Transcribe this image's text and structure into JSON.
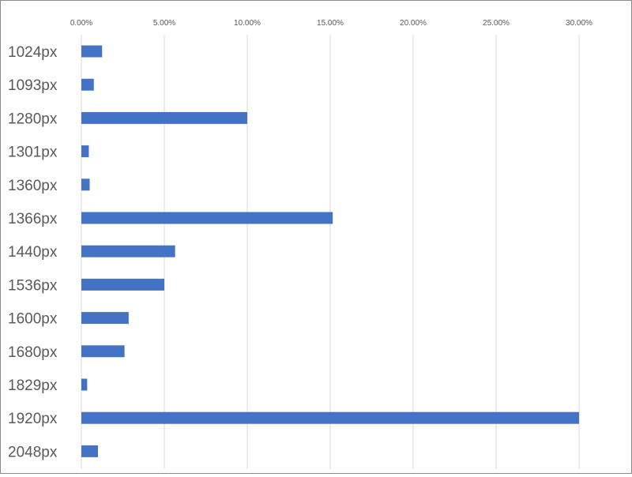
{
  "chart_data": {
    "type": "bar",
    "orientation": "horizontal",
    "categories": [
      "1024px",
      "1093px",
      "1280px",
      "1301px",
      "1360px",
      "1366px",
      "1440px",
      "1536px",
      "1600px",
      "1680px",
      "1829px",
      "1920px",
      "2048px"
    ],
    "values": [
      1.25,
      0.75,
      10.0,
      0.45,
      0.5,
      15.15,
      5.65,
      5.0,
      2.85,
      2.6,
      0.35,
      30.0,
      1.0
    ],
    "value_unit": "%",
    "xlim": [
      0,
      30
    ],
    "x_ticks": [
      0,
      5,
      10,
      15,
      20,
      25,
      30
    ],
    "x_tick_labels": [
      "0.00%",
      "5.00%",
      "10.00%",
      "15.00%",
      "20.00%",
      "25.00%",
      "30.00%"
    ],
    "x_axis_position": "top",
    "grid": true,
    "legend": "none",
    "bar_color": "#4472c4",
    "title": "",
    "xlabel": "",
    "ylabel": ""
  }
}
